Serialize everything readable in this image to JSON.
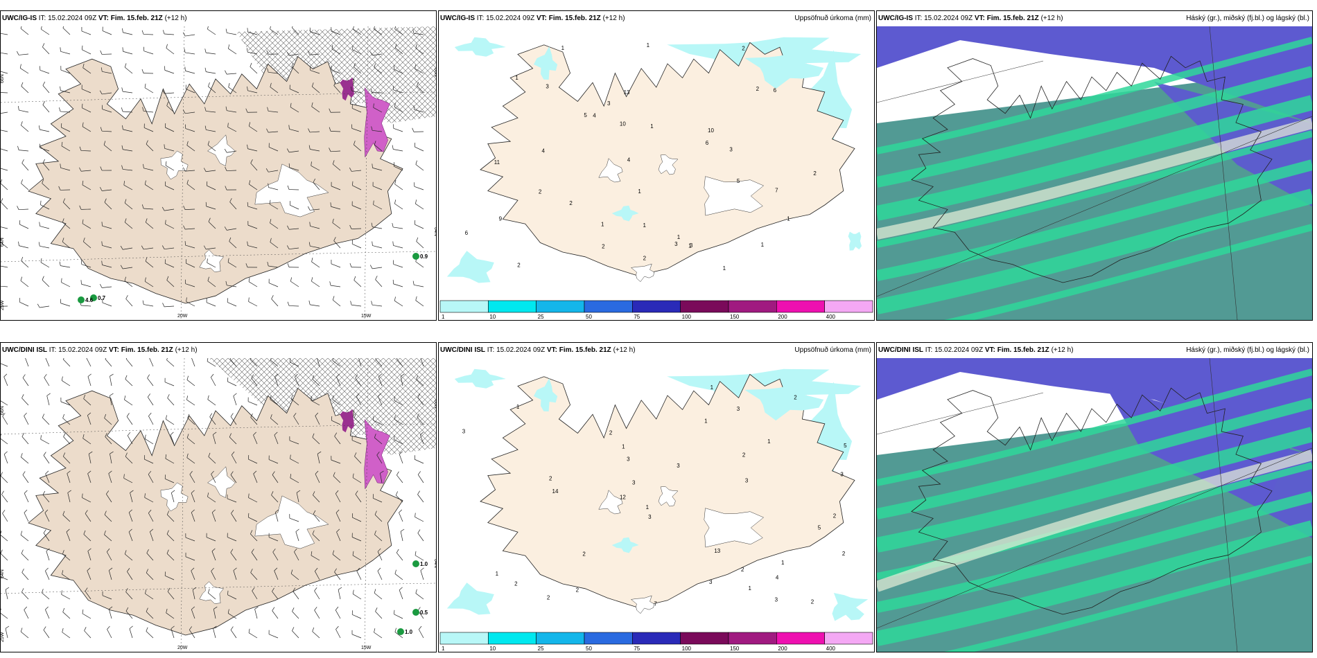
{
  "panels": [
    {
      "id": "r1c1",
      "model": "UWC/IG-IS",
      "it_label": "IT: 15.02.2024 09Z",
      "vt_prefix": "VT:",
      "vt_label": "Fim. 15.feb. 21Z",
      "lead": "(+12 h)",
      "right_title": "",
      "kind": "wind",
      "grid_labels": {
        "lat1": "66N",
        "lat2": "64N",
        "lon_left": "25W",
        "lon1": "20W",
        "lon2": "15W",
        "lat_r1": "66N",
        "lat_r2": "64N"
      },
      "values": [
        {
          "text": "0.7",
          "color": "#000"
        },
        {
          "text": "0.9",
          "color": "#000"
        },
        {
          "text": "4.6",
          "color": "#000"
        }
      ]
    },
    {
      "id": "r1c2",
      "model": "UWC/IG-IS",
      "it_label": "IT: 15.02.2024 09Z",
      "vt_prefix": "VT:",
      "vt_label": "Fim. 15.feb. 21Z",
      "lead": "(+12 h)",
      "right_title": "Uppsöfnuð úrkoma (mm)",
      "kind": "precip",
      "numbers": [
        "2",
        "2",
        "1",
        "10",
        "5",
        "4",
        "1",
        "1",
        "2",
        "3",
        "3",
        "3",
        "3",
        "3",
        "1",
        "1",
        "4",
        "6",
        "2",
        "11",
        "10",
        "9",
        "4",
        "1",
        "2",
        "1",
        "1",
        "1",
        "1",
        "2",
        "1",
        "2",
        "7",
        "5",
        "2",
        "13",
        "1",
        "6",
        "6"
      ]
    },
    {
      "id": "r1c3",
      "model": "UWC/IG-IS",
      "it_label": "IT: 15.02.2024 09Z",
      "vt_prefix": "VT:",
      "vt_label": "Fim. 15.feb. 21Z",
      "lead": "(+12 h)",
      "right_title": "Háský (gr.), miðský (fj.bl.) og lágský (bl.)",
      "kind": "cloud"
    },
    {
      "id": "r2c1",
      "model": "UWC/DINI ISL",
      "it_label": "IT: 15.02.2024 09Z",
      "vt_prefix": "VT:",
      "vt_label": "Fim. 15.feb. 21Z",
      "lead": "(+12 h)",
      "right_title": "",
      "kind": "wind",
      "grid_labels": {
        "lat1": "66N",
        "lat2": "64N",
        "lon_left": "25W",
        "lon1": "20W",
        "lon2": "15W",
        "lat_r1": "66N",
        "lat_r2": "64N"
      },
      "values": [
        {
          "text": "1.0",
          "color": "#000"
        },
        {
          "text": "0.5",
          "color": "#000"
        },
        {
          "text": "1.0",
          "color": "#000"
        }
      ]
    },
    {
      "id": "r2c2",
      "model": "UWC/DINI ISL",
      "it_label": "IT: 15.02.2024 09Z",
      "vt_prefix": "VT:",
      "vt_label": "Fim. 15.feb. 21Z",
      "lead": "(+12 h)",
      "right_title": "Uppsöfnuð úrkoma (mm)",
      "kind": "precip",
      "numbers": [
        "3",
        "4",
        "2",
        "1",
        "2",
        "2",
        "1",
        "3",
        "1",
        "3",
        "3",
        "2",
        "3",
        "2",
        "13",
        "12",
        "14",
        "1",
        "2",
        "1",
        "1",
        "2",
        "2",
        "2",
        "1",
        "1",
        "3",
        "7",
        "5",
        "2",
        "3",
        "3",
        "5",
        "3",
        "2",
        "3",
        "2",
        "1"
      ]
    },
    {
      "id": "r2c3",
      "model": "UWC/DINI ISL",
      "it_label": "IT: 15.02.2024 09Z",
      "vt_prefix": "VT:",
      "vt_label": "Fim. 15.feb. 21Z",
      "lead": "(+12 h)",
      "right_title": "Háský (gr.), miðský (fj.bl.) og lágský (bl.)",
      "kind": "cloud"
    }
  ],
  "precip_legend": {
    "ticks": [
      "1",
      "10",
      "25",
      "50",
      "75",
      "100",
      "150",
      "200",
      "400"
    ],
    "colors": [
      "#b8f7f7",
      "#00e8ef",
      "#14b6ea",
      "#2a6ae0",
      "#2a2ab8",
      "#7a0a5a",
      "#a01a80",
      "#ee10b0",
      "#f4a8f4"
    ]
  },
  "colors": {
    "land": "#ecdccb",
    "precip_land": "#fbefe0",
    "ice": "#ffffff",
    "wind_snow": "#d060c8",
    "high_cloud": "#5d5ad0",
    "mid_cloud": "#2fd79a",
    "low_cloud": "#3f8f88"
  }
}
